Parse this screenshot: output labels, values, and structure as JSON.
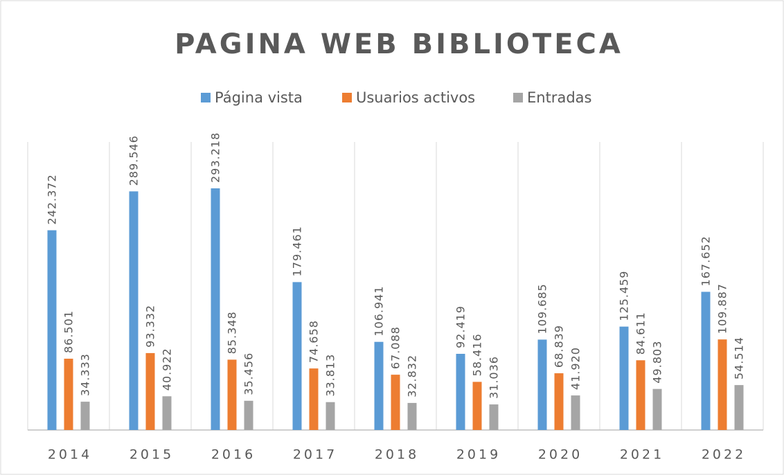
{
  "chart_data": {
    "type": "bar",
    "title": "PAGINA WEB BIBLIOTECA",
    "categories": [
      "2014",
      "2015",
      "2016",
      "2017",
      "2018",
      "2019",
      "2020",
      "2021",
      "2022"
    ],
    "series": [
      {
        "name": "Página vista",
        "color": "#5b9bd5",
        "values": [
          242372,
          289546,
          293218,
          179461,
          106941,
          92419,
          109685,
          125459,
          167652
        ],
        "value_labels": [
          "242.372",
          "289.546",
          "293.218",
          "179.461",
          "106.941",
          "92.419",
          "109.685",
          "125.459",
          "167.652"
        ]
      },
      {
        "name": "Usuarios activos",
        "color": "#ed7d31",
        "values": [
          86501,
          93332,
          85348,
          74658,
          67088,
          58416,
          68839,
          84611,
          109887
        ],
        "value_labels": [
          "86.501",
          "93.332",
          "85.348",
          "74.658",
          "67.088",
          "58.416",
          "68.839",
          "84.611",
          "109.887"
        ]
      },
      {
        "name": "Entradas",
        "color": "#a5a5a5",
        "values": [
          34333,
          40922,
          35456,
          33813,
          32832,
          31036,
          41920,
          49803,
          54514
        ],
        "value_labels": [
          "34.333",
          "40.922",
          "35.456",
          "33.813",
          "32.832",
          "31.036",
          "41.920",
          "49.803",
          "54.514"
        ]
      }
    ]
  }
}
